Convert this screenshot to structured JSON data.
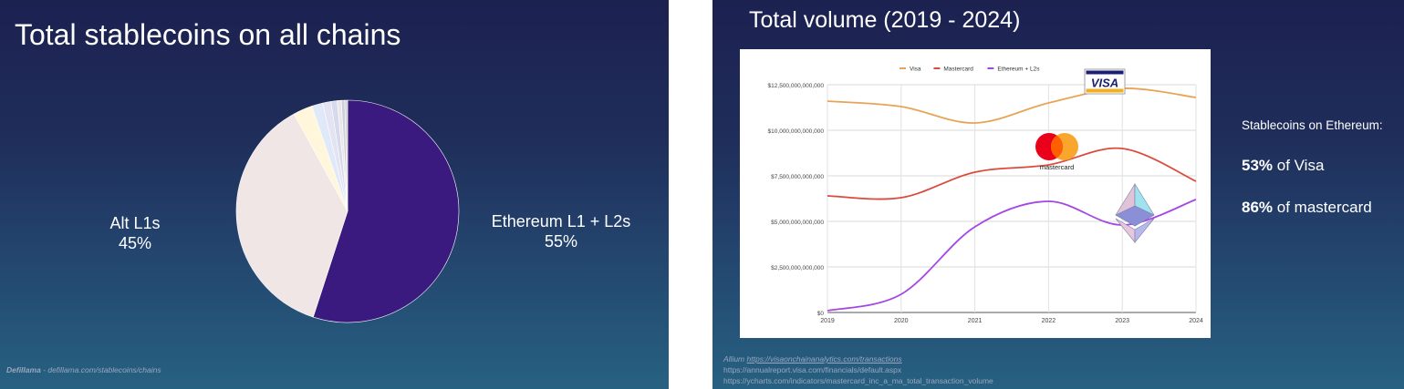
{
  "left_slide": {
    "title": "Total stablecoins on all chains",
    "alt_label": "Alt L1s",
    "alt_pct": "45%",
    "eth_label": "Ethereum L1 + L2s",
    "eth_pct": "55%",
    "source_brand": "Defillama",
    "source_rest": " - defillama.com/stablecoins/chains"
  },
  "right_slide": {
    "title": "Total volume (2019 - 2024)",
    "stats_heading": "Stablecoins on Ethereum:",
    "visa_pct": "53%",
    "visa_text": " of Visa",
    "mc_pct": "86%",
    "mc_text": " of mastercard",
    "source_1_prefix": "Allium ",
    "source_1_link": "https://visaonchainanalytics.com/transactions",
    "source_2": "https://annualreport.visa.com/financials/default.aspx",
    "source_3": "https://ycharts.com/indicators/mastercard_inc_a_ma_total_transaction_volume",
    "logos": {
      "visa": "VISA",
      "mastercard": "mastercard"
    }
  },
  "chart_data": [
    {
      "type": "pie",
      "slices": [
        {
          "label": "Ethereum L1 + L2s",
          "value": 55,
          "color": "#3a1a7e"
        },
        {
          "label": "Alt L1s",
          "value": 37,
          "color": "#f1e6e6"
        },
        {
          "label": "",
          "value": 2.8,
          "color": "#fff6dc"
        },
        {
          "label": "",
          "value": 1.6,
          "color": "#dfe9f8"
        },
        {
          "label": "",
          "value": 1.2,
          "color": "#e3e3f4"
        },
        {
          "label": "",
          "value": 0.9,
          "color": "#d9d9ee"
        },
        {
          "label": "",
          "value": 0.6,
          "color": "#e8e8e8"
        },
        {
          "label": "",
          "value": 0.5,
          "color": "#cfcfdc"
        },
        {
          "label": "",
          "value": 0.4,
          "color": "#d2d2d2"
        }
      ]
    },
    {
      "type": "line",
      "x": [
        2019,
        2020,
        2021,
        2022,
        2023,
        2024
      ],
      "xlabels": [
        "2019",
        "2020",
        "2021",
        "2022",
        "2023",
        "2024"
      ],
      "yticks": [
        0,
        2500000000000,
        5000000000000,
        7500000000000,
        10000000000000,
        12500000000000
      ],
      "ytick_labels": [
        "$0",
        "$2,500,000,000,000",
        "$5,000,000,000,000",
        "$7,500,000,000,000",
        "$10,000,000,000,000",
        "$12,500,000,000,000"
      ],
      "ylim": [
        0,
        12500000000000
      ],
      "grid": true,
      "legend_position": "top",
      "series": [
        {
          "name": "Visa",
          "color": "#e8a456",
          "values": [
            11600000000000,
            11300000000000,
            10400000000000,
            11500000000000,
            12300000000000,
            11800000000000
          ]
        },
        {
          "name": "Mastercard",
          "color": "#dc4a3d",
          "values": [
            6400000000000,
            6300000000000,
            7700000000000,
            8100000000000,
            9000000000000,
            7200000000000
          ]
        },
        {
          "name": "Ethereum + L2s",
          "color": "#a447e4",
          "values": [
            100000000000,
            1000000000000,
            4700000000000,
            6100000000000,
            4800000000000,
            6200000000000
          ]
        }
      ]
    }
  ]
}
